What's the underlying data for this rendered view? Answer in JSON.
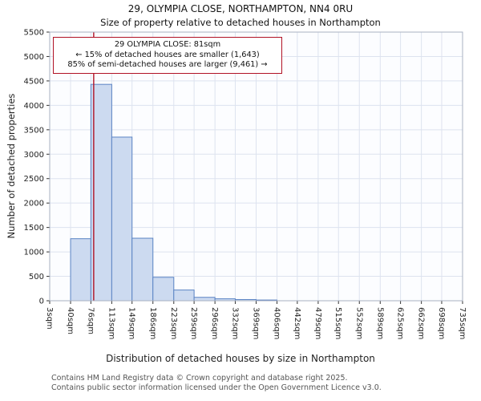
{
  "chart_data": {
    "type": "bar",
    "title": "29, OLYMPIA CLOSE, NORTHAMPTON, NN4 0RU",
    "subtitle": "Size of property relative to detached houses in Northampton",
    "xlabel": "Distribution of detached houses by size in Northampton",
    "ylabel": "Number of detached properties",
    "bin_edges_sqm": [
      3,
      40,
      76,
      113,
      149,
      186,
      223,
      259,
      296,
      332,
      369,
      406,
      442,
      479,
      515,
      552,
      589,
      625,
      662,
      698,
      735
    ],
    "tick_labels": [
      "3sqm",
      "40sqm",
      "76sqm",
      "113sqm",
      "149sqm",
      "186sqm",
      "223sqm",
      "259sqm",
      "296sqm",
      "332sqm",
      "369sqm",
      "406sqm",
      "442sqm",
      "479sqm",
      "515sqm",
      "552sqm",
      "589sqm",
      "625sqm",
      "662sqm",
      "698sqm",
      "735sqm"
    ],
    "values": [
      0,
      1270,
      4430,
      3350,
      1280,
      480,
      220,
      70,
      40,
      25,
      15,
      0,
      0,
      0,
      0,
      0,
      0,
      0,
      0,
      0
    ],
    "ylim": [
      0,
      5500
    ],
    "ytick_step": 500,
    "grid": true,
    "legend": "none",
    "marker_value_sqm": 81,
    "marker_color": "#b01225",
    "bar_fill": "#ccdaf0",
    "bar_stroke": "#5b84c4"
  },
  "annotation": {
    "line1": "29 OLYMPIA CLOSE: 81sqm",
    "line2": "← 15% of detached houses are smaller (1,643)",
    "line3": "85% of semi-detached houses are larger (9,461) →"
  },
  "footer": {
    "line1": "Contains HM Land Registry data © Crown copyright and database right 2025.",
    "line2": "Contains public sector information licensed under the Open Government Licence v3.0."
  }
}
